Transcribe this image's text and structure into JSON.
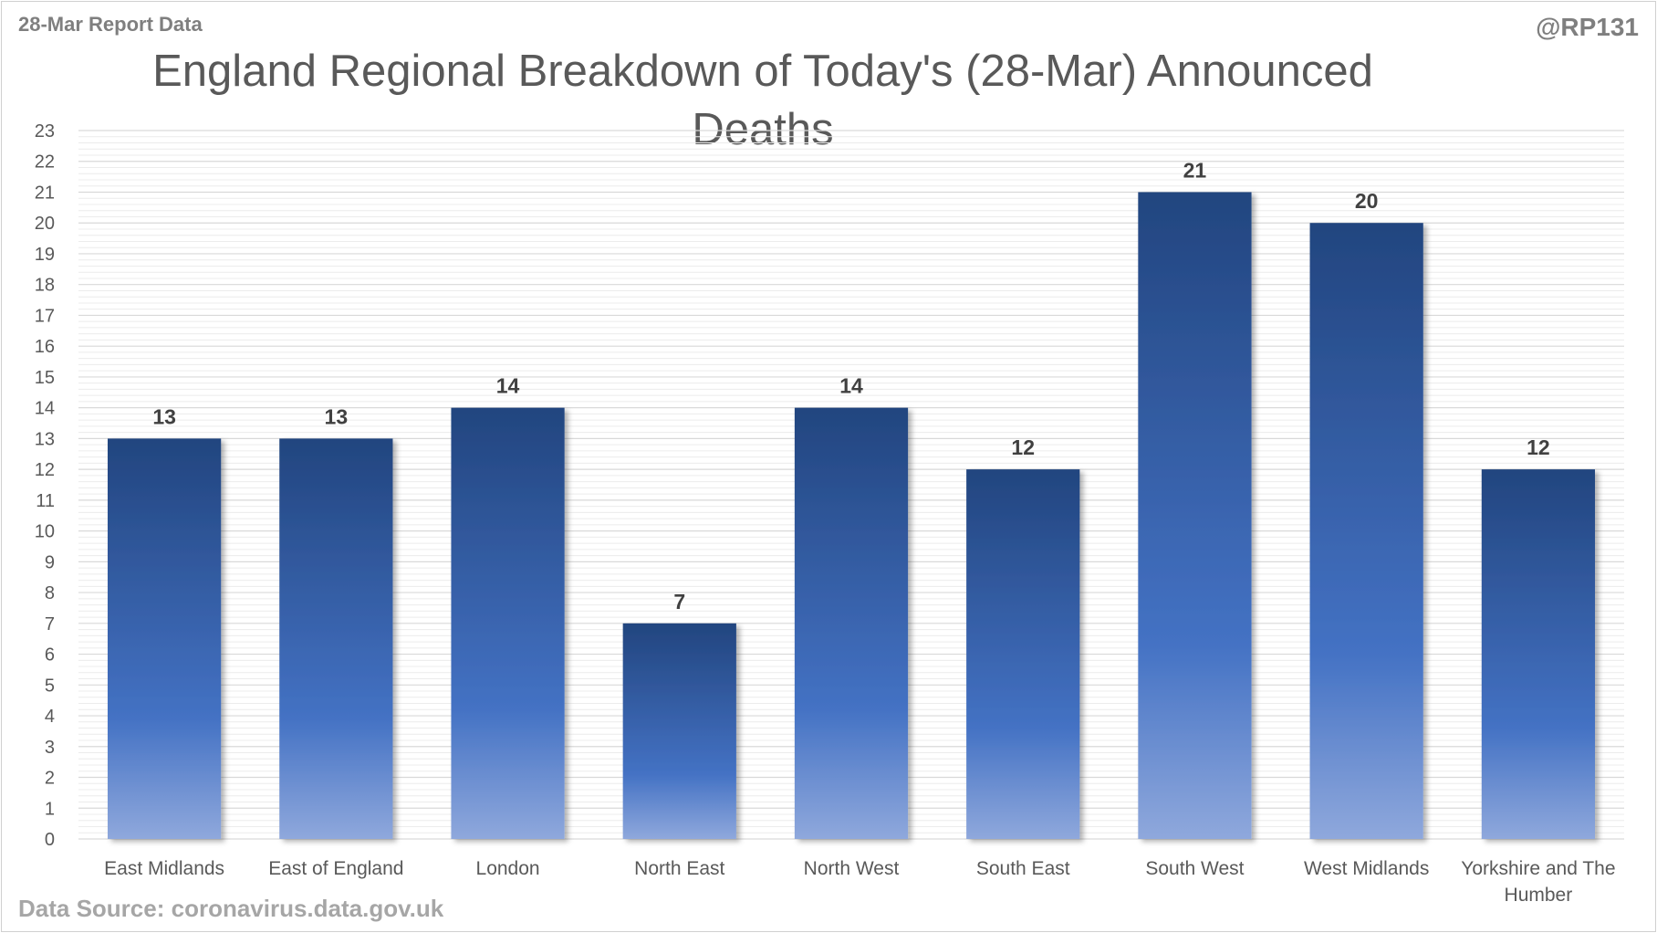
{
  "header": {
    "report_label": "28-Mar Report Data",
    "handle": "@RP131"
  },
  "footer": {
    "source": "Data Source: coronavirus.data.gov.uk"
  },
  "colors": {
    "bar_top": "#22457f",
    "bar_mid": "#4472c4",
    "bar_bottom": "#8fa8dc",
    "grid_major": "#d9d9d9",
    "grid_minor": "#ececec",
    "text": "#595959",
    "data_label": "#404040"
  },
  "chart_data": {
    "type": "bar",
    "title": "England Regional Breakdown of Today's (28-Mar) Announced Deaths",
    "categories": [
      "East Midlands",
      "East of England",
      "London",
      "North East",
      "North West",
      "South East",
      "South West",
      "West Midlands",
      "Yorkshire and The Humber"
    ],
    "values": [
      13,
      13,
      14,
      7,
      14,
      12,
      21,
      20,
      12
    ],
    "ylim": [
      0,
      23
    ],
    "ytick_step": 1,
    "xlabel": "",
    "ylabel": "",
    "grid": true,
    "data_labels": true,
    "legend": false
  }
}
